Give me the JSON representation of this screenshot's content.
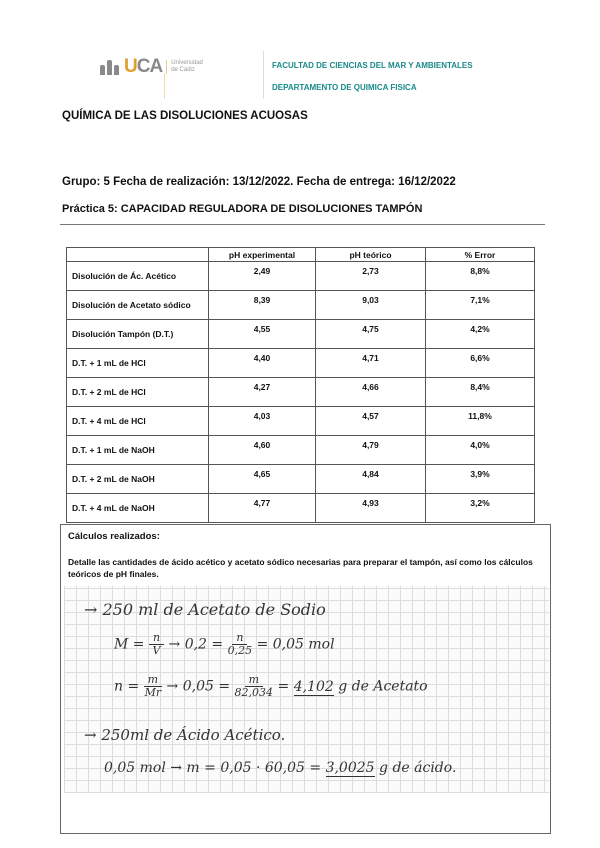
{
  "header": {
    "logo": {
      "text": "UCA",
      "sub1": "Universidad",
      "sub2": "de Cádiz"
    },
    "faculty": "FACULTAD DE CIENCIAS DEL MAR Y AMBIENTALES",
    "department": "DEPARTAMENTO DE QUIMICA FISICA"
  },
  "title": "QUÍMICA DE LAS DISOLUCIONES ACUOSAS",
  "info": "Grupo: 5 Fecha de realización: 13/12/2022. Fecha de entrega: 16/12/2022",
  "practice": "Práctica 5: CAPACIDAD REGULADORA DE DISOLUCIONES TAMPÓN",
  "table": {
    "headers": [
      "",
      "pH experimental",
      "pH teórico",
      "% Error"
    ],
    "rows": [
      [
        "Disolución de Ác. Acético",
        "2,49",
        "2,73",
        "8,8%"
      ],
      [
        "Disolución de Acetato sódico",
        "8,39",
        "9,03",
        "7,1%"
      ],
      [
        "Disolución Tampón (D.T.)",
        "4,55",
        "4,75",
        "4,2%"
      ],
      [
        "D.T. + 1 mL de HCl",
        "4,40",
        "4,71",
        "6,6%"
      ],
      [
        "D.T. + 2 mL de HCl",
        "4,27",
        "4,66",
        "8,4%"
      ],
      [
        "D.T. + 4 mL de HCl",
        "4,03",
        "4,57",
        "11,8%"
      ],
      [
        "D.T. + 1 mL de NaOH",
        "4,60",
        "4,79",
        "4,0%"
      ],
      [
        "D.T. + 2 mL de NaOH",
        "4,65",
        "4,84",
        "3,9%"
      ],
      [
        "D.T. + 4 mL de NaOH",
        "4,77",
        "4,93",
        "3,2%"
      ]
    ]
  },
  "calculations": {
    "title": "Cálculos realizados:",
    "description": "Detalle las cantidades de ácido acético y acetato sódico necesarias para preparar el tampón, así como los cálculos teóricos de pH finales.",
    "handwritten": {
      "l1": "→ 250 ml de Acetato de Sodio",
      "l2a": "M =",
      "l2n": "n",
      "l2d": "V",
      "l2b": "→ 0,2 =",
      "l2n2": "n",
      "l2d2": "0,25",
      "l2c": "= 0,05 mol",
      "l3a": "n =",
      "l3n": "m",
      "l3d": "Mr",
      "l3b": "→ 0,05 =",
      "l3n2": "m",
      "l3d2": "82,034",
      "l3c": "=",
      "l3r": "4,102",
      "l3e": "g de Acetato",
      "l4": "→ 250ml de Ácido Acético.",
      "l5a": "0,05 mol  →  m = 0,05 · 60,05 =",
      "l5r": "3,0025",
      "l5e": "g de ácido."
    }
  }
}
